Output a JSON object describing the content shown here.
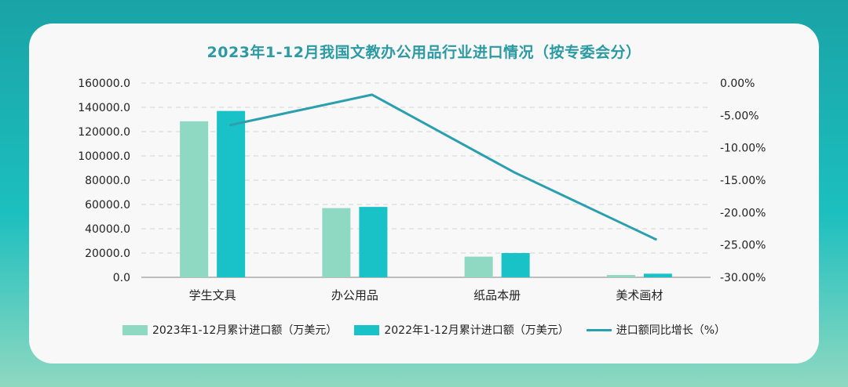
{
  "chart_data": {
    "type": "bar+line",
    "title": "2023年1-12月我国文教办公用品行业进口情况（按专委会分）",
    "categories": [
      "学生文具",
      "办公用品",
      "纸品本册",
      "美术画材"
    ],
    "series": [
      {
        "name": "2023年1-12月累计进口额（万美元）",
        "type": "bar",
        "axis": "left",
        "color": "#8fd8c2",
        "values": [
          128500,
          57000,
          17000,
          1900
        ]
      },
      {
        "name": "2022年1-12月累计进口额（万美元）",
        "type": "bar",
        "axis": "left",
        "color": "#19c2c7",
        "values": [
          137000,
          58000,
          20000,
          3000
        ]
      },
      {
        "name": "进口额同比增长（%）",
        "type": "line",
        "axis": "right",
        "color": "#2a9fb0",
        "values": [
          -6.5,
          -1.8,
          -13.8,
          -24.2
        ]
      }
    ],
    "y_left": {
      "min": 0,
      "max": 160000,
      "step": 20000,
      "ticks": [
        "0.0",
        "20000.0",
        "40000.0",
        "60000.0",
        "80000.0",
        "100000.0",
        "120000.0",
        "140000.0",
        "160000.0"
      ]
    },
    "y_right": {
      "min": -30,
      "max": 0,
      "step": 5,
      "ticks": [
        "-30.00%",
        "-25.00%",
        "-20.00%",
        "-15.00%",
        "-10.00%",
        "-5.00%",
        "0.00%"
      ]
    },
    "grid": true,
    "legend_position": "bottom"
  }
}
